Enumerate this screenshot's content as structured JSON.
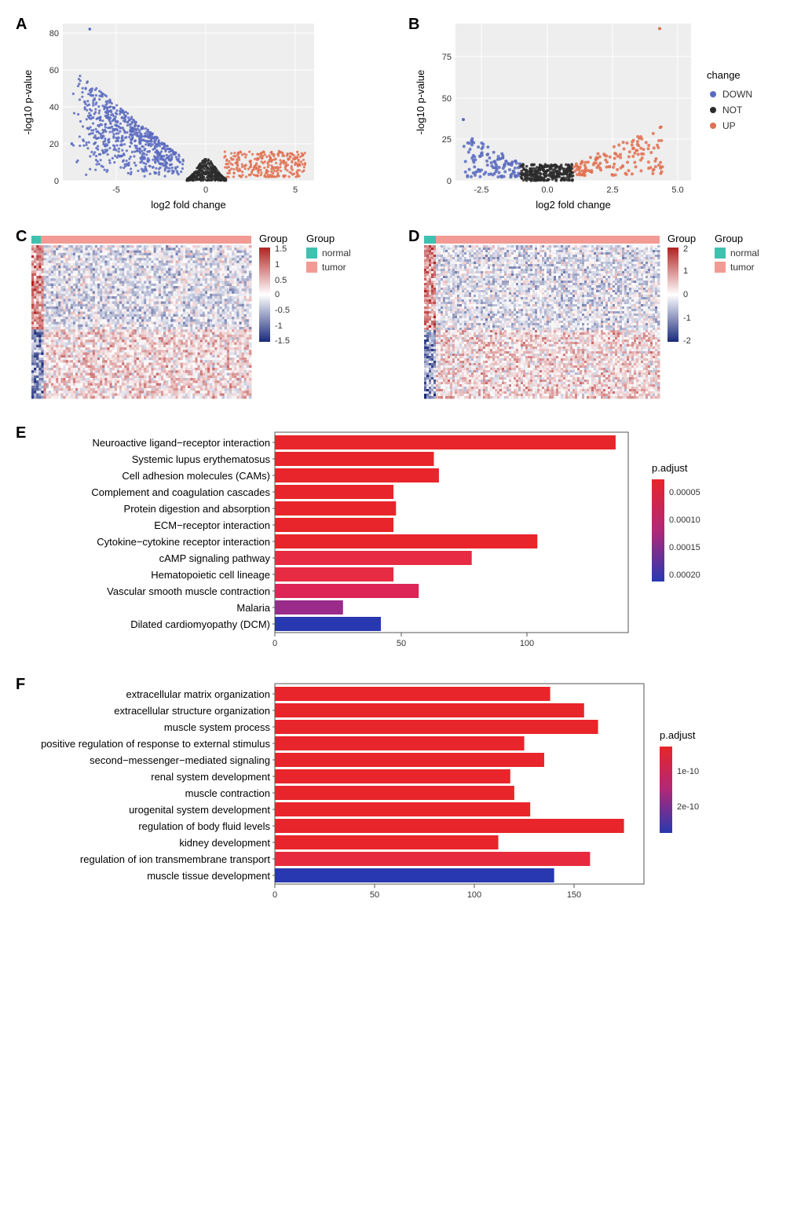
{
  "panelA": {
    "type": "scatter",
    "label": "A",
    "xlabel": "log2 fold change",
    "ylabel": "-log10 p-value",
    "xlim": [
      -8,
      6
    ],
    "ylim": [
      0,
      85
    ],
    "xticks": [
      -5,
      0,
      5
    ],
    "yticks": [
      0,
      20,
      40,
      60,
      80
    ],
    "background": "#eeeeee",
    "grid_color": "#ffffff",
    "colors": {
      "DOWN": "#5a6bbf",
      "NOT": "#2b2b2b",
      "UP": "#e07050"
    }
  },
  "panelB": {
    "type": "scatter",
    "label": "B",
    "xlabel": "log2 fold change",
    "ylabel": "-log10 p-value",
    "xlim": [
      -3.5,
      5.5
    ],
    "ylim": [
      0,
      95
    ],
    "xticks": [
      -2.5,
      0.0,
      2.5,
      5.0
    ],
    "yticks": [
      0,
      25,
      50,
      75
    ],
    "background": "#eeeeee",
    "grid_color": "#ffffff",
    "colors": {
      "DOWN": "#5a6bbf",
      "NOT": "#2b2b2b",
      "UP": "#e07050"
    },
    "legend_title": "change",
    "legend_items": [
      "DOWN",
      "NOT",
      "UP"
    ]
  },
  "panelC": {
    "type": "heatmap",
    "label": "C",
    "group_label": "Group",
    "groups": {
      "normal": "#3fc1b0",
      "tumor": "#f29b94"
    },
    "scale": [
      -1.5,
      -1,
      -0.5,
      0,
      0.5,
      1,
      1.5
    ],
    "colormap_low": "#1a2a7a",
    "colormap_mid": "#ffffff",
    "colormap_high": "#b22222"
  },
  "panelD": {
    "type": "heatmap",
    "label": "D",
    "group_label": "Group",
    "groups": {
      "normal": "#3fc1b0",
      "tumor": "#f29b94"
    },
    "scale": [
      -2,
      -1,
      0,
      1,
      2
    ],
    "colormap_low": "#1a2a7a",
    "colormap_mid": "#ffffff",
    "colormap_high": "#b22222"
  },
  "panelE": {
    "type": "bar",
    "label": "E",
    "xlim": [
      0,
      140
    ],
    "xticks": [
      0,
      50,
      100
    ],
    "legend_title": "p.adjust",
    "legend_ticks": [
      "0.00005",
      "0.00010",
      "0.00015",
      "0.00020"
    ],
    "color_low": "#e8252a",
    "color_high": "#2838b0",
    "bars": [
      {
        "label": "Neuroactive ligand−receptor interaction",
        "value": 135,
        "color": "#e8252a"
      },
      {
        "label": "Systemic lupus erythematosus",
        "value": 63,
        "color": "#e8252a"
      },
      {
        "label": "Cell adhesion molecules (CAMs)",
        "value": 65,
        "color": "#e8252a"
      },
      {
        "label": "Complement and coagulation cascades",
        "value": 47,
        "color": "#e8252a"
      },
      {
        "label": "Protein digestion and absorption",
        "value": 48,
        "color": "#e8252a"
      },
      {
        "label": "ECM−receptor interaction",
        "value": 47,
        "color": "#e8252a"
      },
      {
        "label": "Cytokine−cytokine receptor interaction",
        "value": 104,
        "color": "#e8252a"
      },
      {
        "label": "cAMP signaling pathway",
        "value": 78,
        "color": "#e72b42"
      },
      {
        "label": "Hematopoietic cell lineage",
        "value": 47,
        "color": "#e72b42"
      },
      {
        "label": "Vascular smooth muscle contraction",
        "value": 57,
        "color": "#dd2558"
      },
      {
        "label": "Malaria",
        "value": 27,
        "color": "#9a2b8a"
      },
      {
        "label": "Dilated cardiomyopathy (DCM)",
        "value": 42,
        "color": "#2838b0"
      }
    ]
  },
  "panelF": {
    "type": "bar",
    "label": "F",
    "xlim": [
      0,
      185
    ],
    "xticks": [
      0,
      50,
      100,
      150
    ],
    "legend_title": "p.adjust",
    "legend_ticks": [
      "1e-10",
      "2e-10"
    ],
    "color_low": "#e8252a",
    "color_high": "#2838b0",
    "bars": [
      {
        "label": "extracellular matrix organization",
        "value": 138,
        "color": "#e8252a"
      },
      {
        "label": "extracellular structure organization",
        "value": 155,
        "color": "#e8252a"
      },
      {
        "label": "muscle system process",
        "value": 162,
        "color": "#e8252a"
      },
      {
        "label": "positive regulation of response to external stimulus",
        "value": 125,
        "color": "#e8252a"
      },
      {
        "label": "second−messenger−mediated signaling",
        "value": 135,
        "color": "#e8252a"
      },
      {
        "label": "renal system development",
        "value": 118,
        "color": "#e8252a"
      },
      {
        "label": "muscle contraction",
        "value": 120,
        "color": "#e8252a"
      },
      {
        "label": "urogenital system development",
        "value": 128,
        "color": "#e8252a"
      },
      {
        "label": "regulation of body fluid levels",
        "value": 175,
        "color": "#e8252a"
      },
      {
        "label": "kidney development",
        "value": 112,
        "color": "#e8252a"
      },
      {
        "label": "regulation of ion transmembrane transport",
        "value": 158,
        "color": "#e82a3e"
      },
      {
        "label": "muscle tissue development",
        "value": 140,
        "color": "#2838b0"
      }
    ]
  }
}
